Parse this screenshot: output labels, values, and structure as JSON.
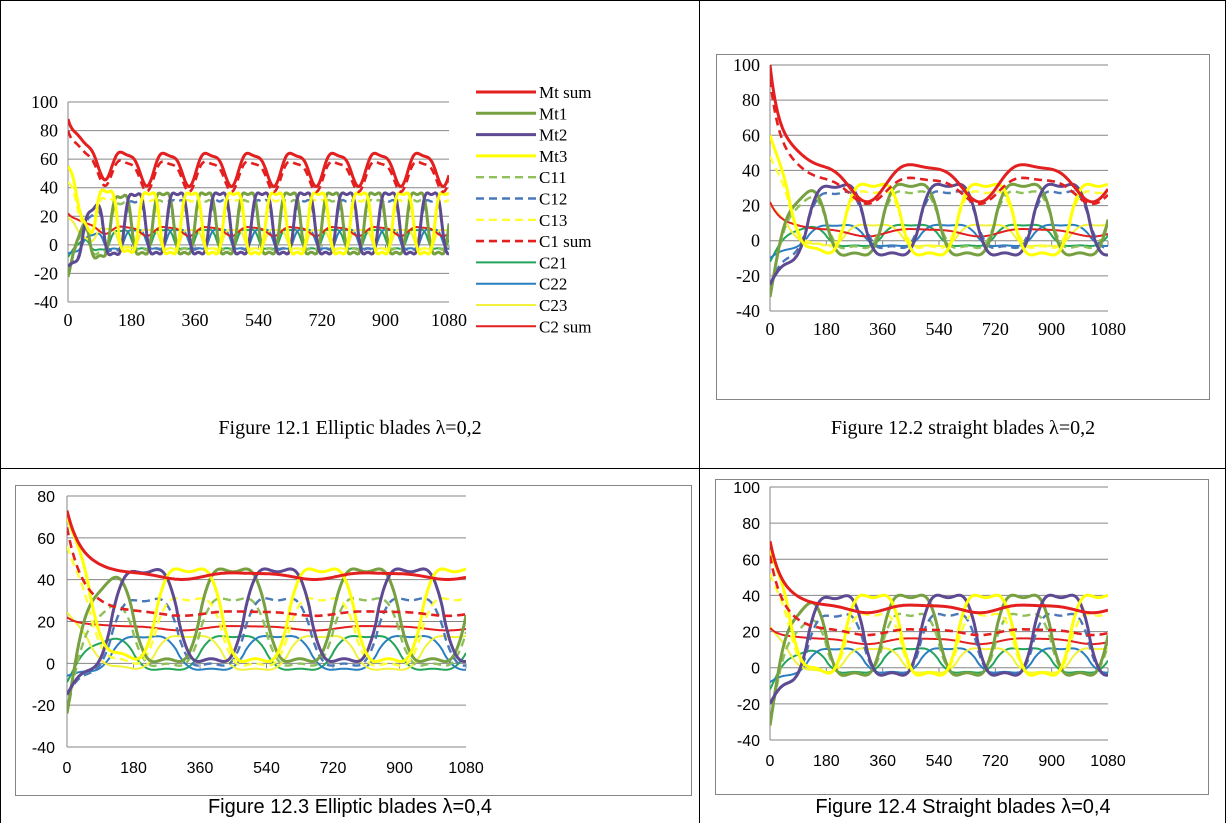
{
  "captions": [
    "Figure 12.1 Elliptic blades λ=0,2",
    "Figure 12.2 straight blades λ=0,2",
    "Figure 12.3 Elliptic blades λ=0,4",
    "Figure 12.4 Straight blades λ=0,4"
  ],
  "colors": {
    "Mt sum": "#e41f1f",
    "Mt1": "#77a040",
    "Mt2": "#5e4a92",
    "Mt3": "#ffff00",
    "C11": "#8fc05a",
    "C12": "#4a78b8",
    "C13": "#ffff33",
    "C1 sum": "#e41f1f",
    "C21": "#22a55a",
    "C22": "#2a7fc0",
    "C23": "#f2f23a",
    "C2 sum": "#e41f1f"
  },
  "chart_data": [
    {
      "type": "line",
      "xlabel": "",
      "ylabel": "",
      "xlim": [
        0,
        1080
      ],
      "ylim": [
        -40,
        100
      ],
      "xticks": [
        "0",
        "180",
        "360",
        "540",
        "720",
        "900",
        "1080"
      ],
      "yticks": [
        "-40",
        "-20",
        "0",
        "20",
        "40",
        "60",
        "80",
        "100"
      ],
      "grid": true,
      "legend": "right",
      "series_names": [
        "Mt sum",
        "Mt1",
        "Mt2",
        "Mt3",
        "C11",
        "C12",
        "C13",
        "C1 sum",
        "C21",
        "C22",
        "C23",
        "C2 sum"
      ],
      "params": {
        "period": 120,
        "init": [
          88,
          -28,
          -15,
          55
        ],
        "Mt sum": [
          55,
          22
        ],
        "C1 sum": [
          50,
          20
        ],
        "C2 sum": [
          10,
          6
        ],
        "Mt": [
          15,
          32
        ],
        "C1": [
          14,
          26
        ],
        "C2": [
          4,
          10
        ]
      }
    },
    {
      "type": "line",
      "xlabel": "",
      "ylabel": "",
      "xlim": [
        0,
        1080
      ],
      "ylim": [
        -40,
        100
      ],
      "xticks": [
        "0",
        "180",
        "360",
        "540",
        "720",
        "900",
        "1080"
      ],
      "yticks": [
        "-40",
        "-20",
        "0",
        "20",
        "40",
        "60",
        "80",
        "100"
      ],
      "grid": true,
      "params": {
        "period": 360,
        "init": [
          100,
          -40,
          -25,
          60
        ],
        "Mt sum": [
          35,
          20
        ],
        "C1 sum": [
          30,
          14
        ],
        "C2 sum": [
          5,
          4
        ],
        "Mt": [
          12,
          30
        ],
        "C1": [
          12,
          24
        ],
        "C2": [
          3,
          9
        ]
      }
    },
    {
      "type": "line",
      "xlabel": "",
      "ylabel": "",
      "xlim": [
        0,
        1080
      ],
      "ylim": [
        -40,
        80
      ],
      "xticks": [
        "0",
        "180",
        "360",
        "540",
        "720",
        "900",
        "1080"
      ],
      "yticks": [
        "-40",
        "-20",
        "0",
        "20",
        "40",
        "60",
        "80"
      ],
      "grid": true,
      "params": {
        "period": 360,
        "init": [
          73,
          -30,
          -15,
          70
        ],
        "Mt sum": [
          42,
          3
        ],
        "C1 sum": [
          24,
          2
        ],
        "C2 sum": [
          17,
          2
        ],
        "Mt": [
          23,
          33
        ],
        "C1": [
          15,
          24
        ],
        "C2": [
          5,
          12
        ]
      }
    },
    {
      "type": "line",
      "xlabel": "",
      "ylabel": "",
      "xlim": [
        0,
        1080
      ],
      "ylim": [
        -40,
        100
      ],
      "xticks": [
        "0",
        "180",
        "360",
        "540",
        "720",
        "900",
        "1080"
      ],
      "yticks": [
        "-40",
        "-20",
        "0",
        "20",
        "40",
        "60",
        "80",
        "100"
      ],
      "grid": true,
      "params": {
        "period": 360,
        "init": [
          70,
          -40,
          -20,
          65
        ],
        "Mt sum": [
          33,
          4
        ],
        "C1 sum": [
          20,
          3
        ],
        "C2 sum": [
          15,
          3
        ],
        "Mt": [
          18,
          33
        ],
        "C1": [
          13,
          25
        ],
        "C2": [
          4,
          10
        ]
      }
    }
  ]
}
